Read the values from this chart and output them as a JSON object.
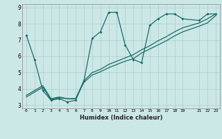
{
  "xlabel": "Humidex (Indice chaleur)",
  "ylabel": "",
  "bg_color": "#cce8e6",
  "grid_color": "#aacccc",
  "line_color": "#1a6b6b",
  "xlim": [
    -0.5,
    23.5
  ],
  "ylim": [
    2.8,
    9.2
  ],
  "xticks": [
    0,
    1,
    2,
    3,
    4,
    5,
    6,
    7,
    8,
    9,
    10,
    11,
    12,
    13,
    14,
    15,
    16,
    17,
    18,
    19,
    21,
    22,
    23
  ],
  "yticks": [
    3,
    4,
    5,
    6,
    7,
    8,
    9
  ],
  "series1": [
    [
      0,
      7.3
    ],
    [
      1,
      5.8
    ],
    [
      2,
      3.9
    ],
    [
      3,
      3.3
    ],
    [
      4,
      3.4
    ],
    [
      5,
      3.2
    ],
    [
      6,
      3.3
    ],
    [
      7,
      4.5
    ],
    [
      8,
      7.1
    ],
    [
      9,
      7.5
    ],
    [
      10,
      8.7
    ],
    [
      11,
      8.7
    ],
    [
      12,
      6.7
    ],
    [
      13,
      5.8
    ],
    [
      14,
      5.6
    ],
    [
      15,
      7.9
    ],
    [
      16,
      8.3
    ],
    [
      17,
      8.6
    ],
    [
      18,
      8.6
    ],
    [
      19,
      8.3
    ],
    [
      21,
      8.2
    ],
    [
      22,
      8.6
    ],
    [
      23,
      8.6
    ]
  ],
  "series2": [
    [
      0,
      3.5
    ],
    [
      2,
      4.1
    ],
    [
      3,
      3.35
    ],
    [
      4,
      3.45
    ],
    [
      5,
      3.4
    ],
    [
      6,
      3.4
    ],
    [
      7,
      4.4
    ],
    [
      8,
      4.85
    ],
    [
      9,
      5.05
    ],
    [
      10,
      5.3
    ],
    [
      11,
      5.5
    ],
    [
      12,
      5.7
    ],
    [
      13,
      5.85
    ],
    [
      14,
      6.2
    ],
    [
      15,
      6.45
    ],
    [
      16,
      6.7
    ],
    [
      17,
      6.95
    ],
    [
      18,
      7.25
    ],
    [
      19,
      7.5
    ],
    [
      21,
      7.85
    ],
    [
      22,
      8.05
    ],
    [
      23,
      8.5
    ]
  ],
  "series3": [
    [
      0,
      3.6
    ],
    [
      2,
      4.2
    ],
    [
      3,
      3.4
    ],
    [
      4,
      3.5
    ],
    [
      5,
      3.4
    ],
    [
      6,
      3.4
    ],
    [
      7,
      4.5
    ],
    [
      8,
      5.0
    ],
    [
      9,
      5.2
    ],
    [
      10,
      5.5
    ],
    [
      11,
      5.7
    ],
    [
      12,
      5.9
    ],
    [
      13,
      6.1
    ],
    [
      14,
      6.4
    ],
    [
      15,
      6.65
    ],
    [
      16,
      6.95
    ],
    [
      17,
      7.2
    ],
    [
      18,
      7.5
    ],
    [
      19,
      7.75
    ],
    [
      21,
      8.05
    ],
    [
      22,
      8.3
    ],
    [
      23,
      8.6
    ]
  ]
}
